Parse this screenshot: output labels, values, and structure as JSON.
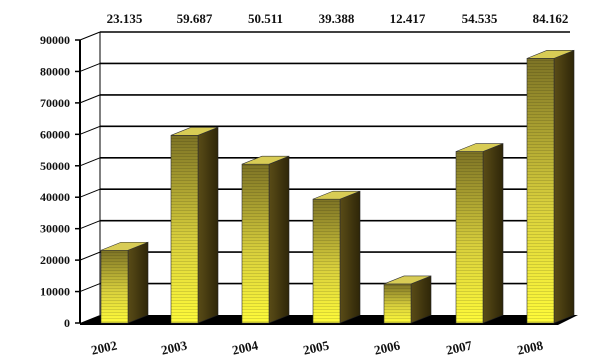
{
  "chart_data": {
    "type": "bar",
    "style": "3d",
    "title": "",
    "xlabel": "",
    "ylabel": "",
    "categories": [
      "2002",
      "2003",
      "2004",
      "2005",
      "2006",
      "2007",
      "2008"
    ],
    "values": [
      23135,
      59687,
      50511,
      39388,
      12417,
      54535,
      84162
    ],
    "data_labels": [
      "23.135",
      "59.687",
      "50.511",
      "39.388",
      "12.417",
      "54.535",
      "84.162"
    ],
    "yticks": [
      "0",
      "10000",
      "20000",
      "30000",
      "40000",
      "50000",
      "60000",
      "70000",
      "80000",
      "90000"
    ],
    "ylim": [
      0,
      90000
    ],
    "grid": true,
    "legend": "none",
    "colors": {
      "bar_front_top": "#fff94a",
      "bar_front_bottom": "#8a7f24",
      "bar_side": "#4a3f14",
      "bar_top": "#d8cc55",
      "grid": "#000000",
      "floor": "#000000"
    }
  }
}
